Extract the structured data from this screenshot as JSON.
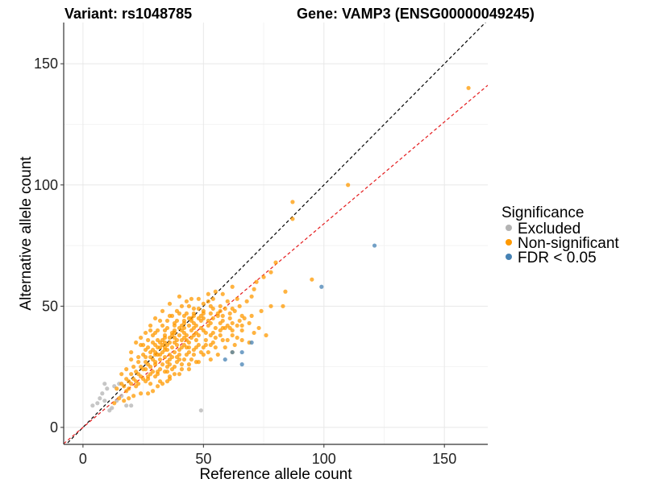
{
  "chart_data": {
    "type": "scatter",
    "title_left": "Variant: rs1048785",
    "title_right": "Gene: VAMP3 (ENSG00000049245)",
    "xlabel": "Reference allele count",
    "ylabel": "Alternative allele count",
    "xlim": [
      -8,
      168
    ],
    "ylim": [
      -7,
      167
    ],
    "xticks": [
      0,
      50,
      100,
      150
    ],
    "yticks": [
      0,
      50,
      100,
      150
    ],
    "grid": true,
    "legend": {
      "title": "Significance",
      "position": "right",
      "entries": [
        {
          "label": "Excluded",
          "color": "#b3b3b3"
        },
        {
          "label": "Non-significant",
          "color": "#ff9900"
        },
        {
          "label": "FDR < 0.05",
          "color": "#4682b4"
        }
      ]
    },
    "reference_lines": [
      {
        "name": "identity",
        "slope": 1,
        "intercept": 0,
        "color": "#000000",
        "dash": "dashed"
      },
      {
        "name": "fit",
        "slope": 0.84,
        "intercept": 0,
        "color": "#e41a1c",
        "dash": "dashed"
      }
    ],
    "series": [
      {
        "name": "Excluded",
        "color": "#b3b3b3",
        "points": [
          [
            4,
            9
          ],
          [
            6,
            10
          ],
          [
            8,
            14
          ],
          [
            9,
            18
          ],
          [
            7,
            12
          ],
          [
            10,
            16
          ],
          [
            13,
            17
          ],
          [
            15,
            18
          ],
          [
            12,
            8
          ],
          [
            18,
            9
          ],
          [
            20,
            9
          ],
          [
            49,
            7
          ],
          [
            11,
            7
          ],
          [
            14,
            11
          ],
          [
            16,
            13
          ],
          [
            9,
            11
          ]
        ]
      },
      {
        "name": "Non-significant",
        "color": "#ff9900",
        "points": [
          [
            160,
            140
          ],
          [
            110,
            100
          ],
          [
            87,
            93
          ],
          [
            87,
            86
          ],
          [
            95,
            61
          ],
          [
            80,
            68
          ],
          [
            78,
            64
          ],
          [
            75,
            62
          ],
          [
            72,
            60
          ],
          [
            71,
            57
          ],
          [
            70,
            54
          ],
          [
            68,
            52
          ],
          [
            67,
            45
          ],
          [
            65,
            50
          ],
          [
            63,
            48
          ],
          [
            69,
            43
          ],
          [
            73,
            41
          ],
          [
            76,
            38
          ],
          [
            71,
            39
          ],
          [
            66,
            40
          ],
          [
            84,
            56
          ],
          [
            83,
            50
          ],
          [
            58,
            55
          ],
          [
            62,
            58
          ],
          [
            55,
            56
          ],
          [
            60,
            52
          ],
          [
            57,
            50
          ],
          [
            54,
            53
          ],
          [
            56,
            47
          ],
          [
            61,
            45
          ],
          [
            64,
            42
          ],
          [
            52,
            44
          ],
          [
            59,
            41
          ],
          [
            62,
            38
          ],
          [
            53,
            38
          ],
          [
            58,
            36
          ],
          [
            55,
            33
          ],
          [
            52,
            31
          ],
          [
            50,
            30
          ],
          [
            47,
            27
          ],
          [
            44,
            26
          ],
          [
            41,
            24
          ],
          [
            38,
            22
          ],
          [
            36,
            20
          ],
          [
            35,
            19
          ],
          [
            33,
            18
          ],
          [
            31,
            17
          ],
          [
            29,
            15
          ],
          [
            27,
            14
          ],
          [
            24,
            14
          ],
          [
            21,
            13
          ],
          [
            19,
            12
          ],
          [
            17,
            11
          ],
          [
            15,
            12
          ],
          [
            13,
            10
          ],
          [
            14,
            16
          ],
          [
            16,
            18
          ],
          [
            18,
            20
          ],
          [
            20,
            22
          ],
          [
            22,
            23
          ],
          [
            24,
            25
          ],
          [
            26,
            27
          ],
          [
            28,
            29
          ],
          [
            30,
            31
          ],
          [
            32,
            33
          ],
          [
            34,
            35
          ],
          [
            36,
            37
          ],
          [
            38,
            39
          ],
          [
            40,
            41
          ],
          [
            42,
            43
          ],
          [
            44,
            45
          ],
          [
            46,
            47
          ],
          [
            48,
            49
          ],
          [
            50,
            51
          ],
          [
            52,
            52
          ],
          [
            54,
            49
          ],
          [
            56,
            46
          ],
          [
            58,
            44
          ],
          [
            60,
            42
          ],
          [
            62,
            40
          ],
          [
            64,
            37
          ],
          [
            47,
            42
          ],
          [
            45,
            40
          ],
          [
            43,
            38
          ],
          [
            41,
            36
          ],
          [
            39,
            34
          ],
          [
            37,
            33
          ],
          [
            35,
            32
          ],
          [
            33,
            31
          ],
          [
            31,
            30
          ],
          [
            29,
            28
          ],
          [
            27,
            26
          ],
          [
            25,
            24
          ],
          [
            23,
            22
          ],
          [
            21,
            20
          ],
          [
            19,
            19
          ],
          [
            17,
            17
          ],
          [
            25,
            34
          ],
          [
            27,
            36
          ],
          [
            29,
            38
          ],
          [
            31,
            40
          ],
          [
            33,
            42
          ],
          [
            35,
            44
          ],
          [
            37,
            46
          ],
          [
            39,
            48
          ],
          [
            41,
            50
          ],
          [
            43,
            52
          ],
          [
            45,
            53
          ],
          [
            40,
            54
          ],
          [
            36,
            51
          ],
          [
            33,
            48
          ],
          [
            30,
            45
          ],
          [
            28,
            42
          ],
          [
            26,
            39
          ],
          [
            24,
            37
          ],
          [
            22,
            35
          ],
          [
            20,
            31
          ],
          [
            23,
            29
          ],
          [
            26,
            32
          ],
          [
            30,
            34
          ],
          [
            34,
            37
          ],
          [
            38,
            40
          ],
          [
            42,
            41
          ],
          [
            46,
            43
          ],
          [
            50,
            45
          ],
          [
            53,
            47
          ],
          [
            57,
            43
          ],
          [
            61,
            41
          ],
          [
            48,
            38
          ],
          [
            44,
            35
          ],
          [
            40,
            32
          ],
          [
            36,
            30
          ],
          [
            32,
            28
          ],
          [
            28,
            25
          ],
          [
            24,
            21
          ],
          [
            20,
            18
          ],
          [
            18,
            15
          ],
          [
            22,
            17
          ],
          [
            26,
            19
          ],
          [
            30,
            21
          ],
          [
            34,
            23
          ],
          [
            38,
            25
          ],
          [
            42,
            28
          ],
          [
            46,
            30
          ],
          [
            50,
            33
          ],
          [
            54,
            35
          ],
          [
            48,
            34
          ],
          [
            44,
            31
          ],
          [
            40,
            28
          ],
          [
            36,
            26
          ],
          [
            32,
            24
          ],
          [
            28,
            22
          ],
          [
            35,
            27
          ],
          [
            39,
            29
          ],
          [
            43,
            33
          ],
          [
            47,
            36
          ],
          [
            51,
            39
          ],
          [
            55,
            41
          ],
          [
            49,
            41
          ],
          [
            45,
            37
          ],
          [
            41,
            33
          ],
          [
            37,
            29
          ],
          [
            33,
            26
          ],
          [
            29,
            23
          ],
          [
            25,
            20
          ],
          [
            34,
            38
          ],
          [
            38,
            43
          ],
          [
            42,
            46
          ],
          [
            46,
            49
          ],
          [
            50,
            48
          ],
          [
            32,
            35
          ],
          [
            36,
            35
          ],
          [
            40,
            38
          ],
          [
            44,
            42
          ],
          [
            48,
            45
          ],
          [
            52,
            42
          ],
          [
            30,
            26
          ],
          [
            34,
            29
          ],
          [
            38,
            31
          ],
          [
            42,
            34
          ],
          [
            46,
            32
          ],
          [
            31,
            33
          ],
          [
            35,
            34
          ],
          [
            39,
            36
          ],
          [
            43,
            36
          ],
          [
            47,
            39
          ],
          [
            51,
            36
          ],
          [
            28,
            31
          ],
          [
            32,
            30
          ],
          [
            36,
            28
          ],
          [
            40,
            30
          ],
          [
            44,
            33
          ],
          [
            26,
            24
          ],
          [
            30,
            27
          ],
          [
            34,
            32
          ],
          [
            38,
            37
          ],
          [
            42,
            39
          ],
          [
            46,
            41
          ],
          [
            25,
            30
          ],
          [
            29,
            32
          ],
          [
            33,
            34
          ],
          [
            37,
            38
          ],
          [
            41,
            40
          ],
          [
            45,
            44
          ],
          [
            49,
            46
          ],
          [
            53,
            50
          ],
          [
            57,
            48
          ],
          [
            61,
            47
          ],
          [
            65,
            44
          ],
          [
            21,
            25
          ],
          [
            23,
            27
          ],
          [
            27,
            33
          ],
          [
            31,
            36
          ],
          [
            35,
            41
          ],
          [
            39,
            44
          ],
          [
            43,
            47
          ],
          [
            62,
            31
          ],
          [
            59,
            33
          ],
          [
            56,
            30
          ],
          [
            53,
            28
          ],
          [
            48,
            27
          ],
          [
            44,
            24
          ],
          [
            40,
            22
          ],
          [
            36,
            21
          ],
          [
            32,
            19
          ],
          [
            28,
            18
          ],
          [
            37,
            24
          ],
          [
            41,
            26
          ],
          [
            45,
            28
          ],
          [
            49,
            31
          ],
          [
            53,
            34
          ],
          [
            57,
            38
          ],
          [
            60,
            36
          ],
          [
            63,
            34
          ],
          [
            66,
            36
          ],
          [
            69,
            35
          ],
          [
            20,
            28
          ],
          [
            18,
            24
          ],
          [
            16,
            22
          ],
          [
            22,
            19
          ],
          [
            27,
            21
          ],
          [
            31,
            23
          ],
          [
            35,
            25
          ],
          [
            52,
            55
          ],
          [
            48,
            53
          ],
          [
            44,
            50
          ],
          [
            40,
            47
          ],
          [
            36,
            46
          ],
          [
            32,
            44
          ],
          [
            28,
            40
          ],
          [
            24,
            34
          ],
          [
            30,
            39
          ],
          [
            34,
            40
          ],
          [
            38,
            42
          ],
          [
            42,
            44
          ],
          [
            46,
            46
          ],
          [
            50,
            47
          ],
          [
            54,
            45
          ],
          [
            58,
            46
          ],
          [
            62,
            49
          ],
          [
            66,
            46
          ],
          [
            64,
            53
          ],
          [
            59,
            49
          ],
          [
            55,
            37
          ],
          [
            51,
            34
          ],
          [
            47,
            33
          ],
          [
            43,
            30
          ],
          [
            39,
            27
          ],
          [
            35,
            23
          ],
          [
            31,
            22
          ],
          [
            27,
            20
          ],
          [
            23,
            18
          ],
          [
            19,
            16
          ],
          [
            29,
            35
          ],
          [
            33,
            36
          ],
          [
            37,
            39
          ],
          [
            41,
            42
          ],
          [
            45,
            45
          ],
          [
            49,
            44
          ],
          [
            53,
            43
          ],
          [
            57,
            40
          ],
          [
            26,
            29
          ],
          [
            30,
            30
          ],
          [
            34,
            33
          ],
          [
            38,
            35
          ],
          [
            42,
            37
          ],
          [
            46,
            38
          ],
          [
            50,
            40
          ],
          [
            54,
            39
          ],
          [
            58,
            41
          ],
          [
            62,
            43
          ],
          [
            66,
            42
          ],
          [
            70,
            46
          ],
          [
            74,
            48
          ],
          [
            78,
            50
          ]
        ]
      },
      {
        "name": "FDR < 0.05",
        "color": "#4682b4",
        "points": [
          [
            121,
            75
          ],
          [
            99,
            58
          ],
          [
            70,
            35
          ],
          [
            66,
            31
          ],
          [
            62,
            31
          ],
          [
            66,
            26
          ],
          [
            59,
            28
          ]
        ]
      }
    ]
  }
}
